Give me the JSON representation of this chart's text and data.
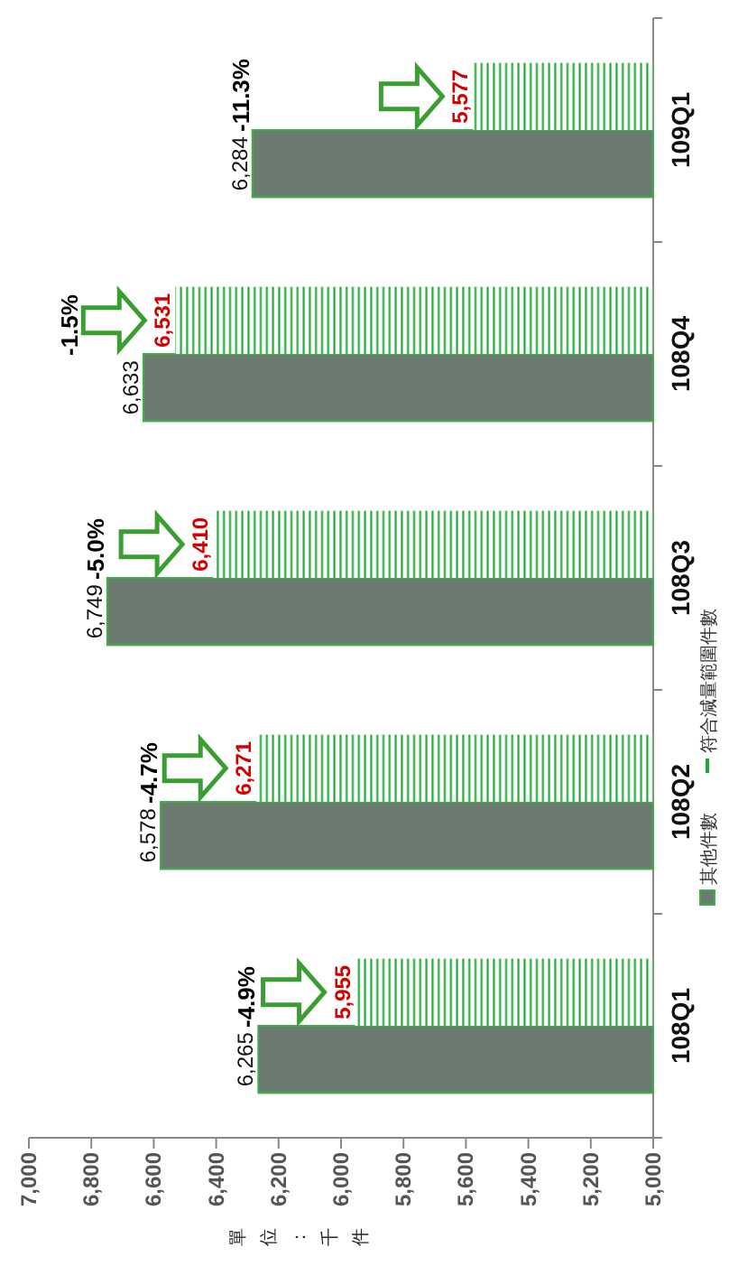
{
  "chart_data": {
    "type": "bar",
    "orientation": "horizontal",
    "categories": [
      "109Q1",
      "108Q4",
      "108Q3",
      "108Q2",
      "108Q1"
    ],
    "series": [
      {
        "name": "其他件數",
        "color": "#6b7b6f",
        "values": [
          6284,
          6633,
          6749,
          6578,
          6265
        ],
        "value_labels": [
          "6,284",
          "6,633",
          "6,749",
          "6,578",
          "6,265"
        ]
      },
      {
        "name": "符合減量範圍件數",
        "color": "#22a83a",
        "values": [
          5577,
          6531,
          6410,
          6271,
          5955
        ],
        "value_labels": [
          "5,577",
          "6,531",
          "6,410",
          "6,271",
          "5,955"
        ]
      }
    ],
    "xlim": [
      7000,
      5000
    ],
    "xticks": [
      {
        "value": 7000,
        "label": "7,000"
      },
      {
        "value": 6800,
        "label": "6,800"
      },
      {
        "value": 6600,
        "label": "6,600"
      },
      {
        "value": 6400,
        "label": "6,400"
      },
      {
        "value": 6200,
        "label": "6,200"
      },
      {
        "value": 6000,
        "label": "6,000"
      },
      {
        "value": 5800,
        "label": "5,800"
      },
      {
        "value": 5600,
        "label": "5,600"
      },
      {
        "value": 5400,
        "label": "5,400"
      },
      {
        "value": 5200,
        "label": "5,200"
      },
      {
        "value": 5000,
        "label": "5,000"
      }
    ],
    "annotations": [
      {
        "text": "-11.3%",
        "x": 6284,
        "y": "109Q1"
      },
      {
        "text": "-1.5%",
        "x": 6633,
        "y": "108Q4"
      },
      {
        "text": "-5.0%",
        "x": 6749,
        "y": "108Q3"
      },
      {
        "text": "-4.7%",
        "x": 6578,
        "y": "108Q2"
      },
      {
        "text": "-4.9%",
        "x": 6265,
        "y": "108Q1"
      },
      "單位：千件"
    ],
    "grid": false,
    "legend": "right"
  }
}
